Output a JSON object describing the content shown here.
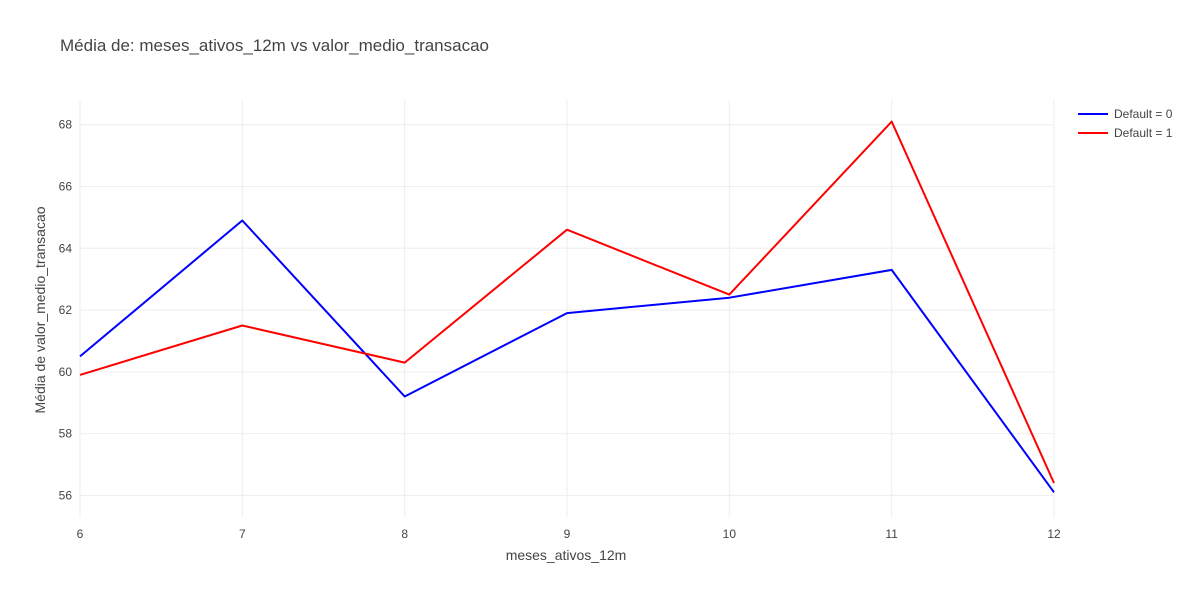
{
  "chart_data": {
    "type": "line",
    "title": "Média de: meses_ativos_12m vs valor_medio_transacao",
    "xlabel": "meses_ativos_12m",
    "ylabel": "Média de valor_medio_transacao",
    "x": [
      6,
      7,
      8,
      9,
      10,
      11,
      12
    ],
    "xlim": [
      6,
      12
    ],
    "ylim": [
      55.3,
      68.8
    ],
    "xticks": [
      "6",
      "7",
      "8",
      "9",
      "10",
      "11",
      "12"
    ],
    "yticks": [
      "56",
      "58",
      "60",
      "62",
      "64",
      "66",
      "68"
    ],
    "ytick_values": [
      56,
      58,
      60,
      62,
      64,
      66,
      68
    ],
    "grid": true,
    "legend_position": "top-right",
    "series": [
      {
        "name": "Default = 0",
        "color": "#0000ff",
        "values": [
          60.5,
          64.9,
          59.2,
          61.9,
          62.4,
          63.3,
          56.1
        ]
      },
      {
        "name": "Default = 1",
        "color": "#ff0000",
        "values": [
          59.9,
          61.5,
          60.3,
          64.6,
          62.5,
          68.1,
          56.4
        ]
      }
    ]
  }
}
